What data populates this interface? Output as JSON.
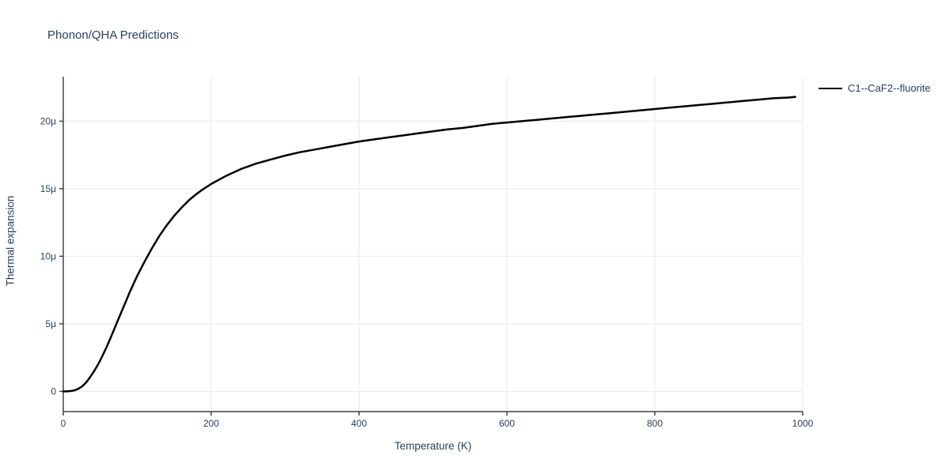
{
  "colors": {
    "text": "#2a3f5f",
    "grid": "#e9e9e9",
    "axis": "#444444",
    "background": "#ffffff",
    "line": "#000000"
  },
  "chart_data": {
    "type": "line",
    "title": "Phonon/QHA Predictions",
    "xlabel": "Temperature (K)",
    "ylabel": "Thermal expansion",
    "xlim": [
      0,
      1000
    ],
    "ylim": [
      -1.5,
      23.3
    ],
    "x_ticks": [
      {
        "v": 0,
        "label": "0"
      },
      {
        "v": 200,
        "label": "200"
      },
      {
        "v": 400,
        "label": "400"
      },
      {
        "v": 600,
        "label": "600"
      },
      {
        "v": 800,
        "label": "800"
      },
      {
        "v": 1000,
        "label": "1000"
      }
    ],
    "y_ticks": [
      {
        "v": 0,
        "label": "0"
      },
      {
        "v": 5,
        "label": "5μ"
      },
      {
        "v": 10,
        "label": "10μ"
      },
      {
        "v": 15,
        "label": "15μ"
      },
      {
        "v": 20,
        "label": "20μ"
      }
    ],
    "grid": true,
    "legend_position": "top-right-outside",
    "series": [
      {
        "name": "C1--CaF2--fluorite",
        "color": "#000000",
        "x": [
          0,
          5,
          10,
          15,
          20,
          25,
          30,
          35,
          40,
          45,
          50,
          55,
          60,
          65,
          70,
          75,
          80,
          85,
          90,
          95,
          100,
          110,
          120,
          130,
          140,
          150,
          160,
          170,
          180,
          190,
          200,
          210,
          220,
          230,
          240,
          250,
          260,
          270,
          280,
          290,
          300,
          320,
          340,
          360,
          380,
          400,
          420,
          440,
          460,
          480,
          500,
          520,
          540,
          560,
          580,
          600,
          620,
          640,
          660,
          680,
          700,
          720,
          740,
          760,
          780,
          800,
          820,
          840,
          860,
          880,
          900,
          920,
          940,
          960,
          980,
          990
        ],
        "y": [
          0,
          0,
          0.02,
          0.07,
          0.18,
          0.35,
          0.6,
          0.95,
          1.35,
          1.8,
          2.3,
          2.85,
          3.45,
          4.1,
          4.75,
          5.4,
          6.05,
          6.7,
          7.35,
          7.95,
          8.55,
          9.6,
          10.6,
          11.5,
          12.3,
          13.0,
          13.6,
          14.15,
          14.6,
          15.0,
          15.35,
          15.65,
          15.95,
          16.2,
          16.45,
          16.65,
          16.85,
          17.0,
          17.15,
          17.3,
          17.45,
          17.7,
          17.9,
          18.1,
          18.3,
          18.5,
          18.65,
          18.8,
          18.95,
          19.1,
          19.25,
          19.4,
          19.5,
          19.65,
          19.8,
          19.9,
          20.0,
          20.1,
          20.2,
          20.3,
          20.4,
          20.5,
          20.6,
          20.7,
          20.8,
          20.9,
          21.0,
          21.1,
          21.2,
          21.3,
          21.4,
          21.5,
          21.6,
          21.7,
          21.75,
          21.8
        ]
      }
    ]
  }
}
